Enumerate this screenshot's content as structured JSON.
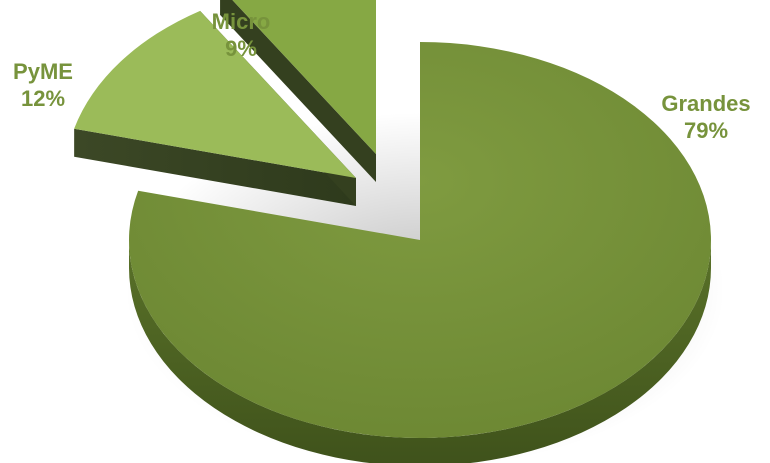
{
  "chart_data": {
    "type": "pie",
    "slices": [
      {
        "category": "Grandes",
        "percent_label": "79%",
        "value": 79,
        "color": "#77933c"
      },
      {
        "category": "PyME",
        "percent_label": "12%",
        "value": 12,
        "color": "#9bbb59"
      },
      {
        "category": "Micro",
        "percent_label": "9%",
        "value": 9,
        "color": "#86a844"
      }
    ],
    "label_color": "#77933c",
    "title": "",
    "legend": "none",
    "style": "3d-exploded"
  }
}
